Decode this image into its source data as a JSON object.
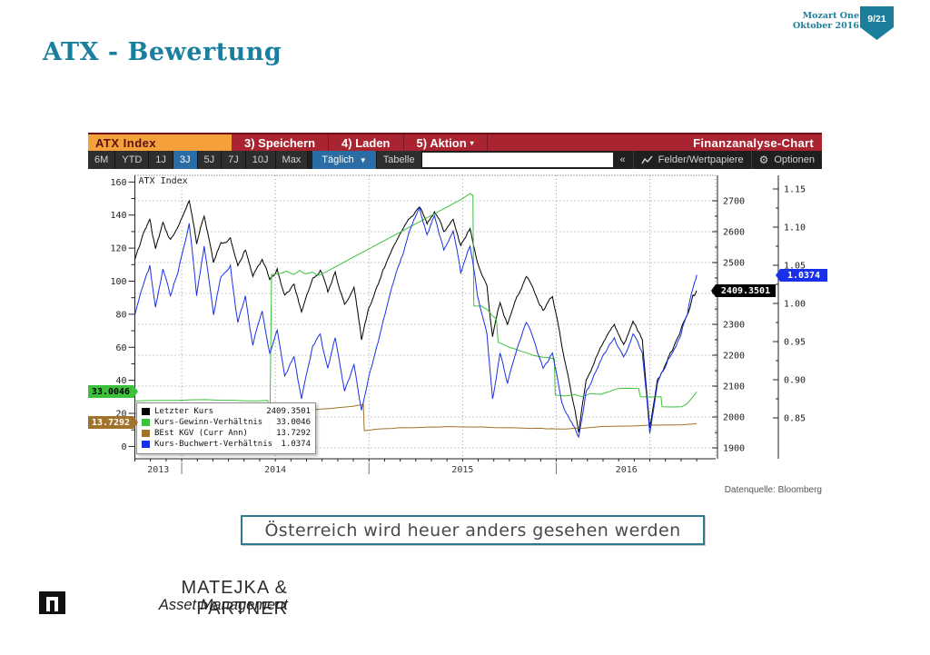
{
  "meta": {
    "project": "Mozart One",
    "date": "Oktober 2016",
    "page": "9/21"
  },
  "title": "ATX - Bewertung",
  "terminal": {
    "tab": "ATX Index",
    "menu": [
      "3) Speichern",
      "4) Laden",
      "5) Aktion"
    ],
    "window_title": "Finanzanalyse-Chart",
    "ranges": [
      "6M",
      "YTD",
      "1J",
      "3J",
      "5J",
      "7J",
      "10J",
      "Max"
    ],
    "selected_range": "3J",
    "period": "Täglich",
    "table_label": "Tabelle",
    "search_value": "",
    "icons": {
      "caret_down": "▼",
      "collapse": "«",
      "gear": "⚙",
      "chart_icon": "line-chart-icon"
    },
    "fields_label": "Felder/Wertpapiere",
    "options_label": "Optionen"
  },
  "chart_data": {
    "type": "line",
    "title": "ATX Index",
    "x_axis": {
      "start": 2013.75,
      "end": 2016.75,
      "year_labels": [
        "2013",
        "2014",
        "2015",
        "2016"
      ],
      "boundaries": [
        2014,
        2015,
        2016
      ],
      "gridlines": [
        2014,
        2014.5,
        2015,
        2015.5,
        2016,
        2016.5
      ]
    },
    "left_axis": {
      "ticks": [
        0,
        20,
        40,
        60,
        80,
        100,
        120,
        140,
        160
      ],
      "minor_step": 10
    },
    "price_axis": {
      "ticks": [
        1900,
        2000,
        2100,
        2200,
        2300,
        2400,
        2500,
        2600,
        2700
      ],
      "minor_step": 50
    },
    "ratio_axis": {
      "ticks": [
        "0.85",
        "0.90",
        "0.95",
        "1.00",
        "1.05",
        "1.10",
        "1.15"
      ],
      "minor_step": 0.025
    },
    "series": [
      {
        "name": "Letzter Kurs",
        "color": "#000000",
        "axis": "price",
        "last": "2409.3501",
        "jitter": 5.5,
        "levels": 3,
        "points": [
          [
            2013.75,
            2510
          ],
          [
            2013.79,
            2585
          ],
          [
            2013.83,
            2640
          ],
          [
            2013.86,
            2545
          ],
          [
            2013.9,
            2630
          ],
          [
            2013.94,
            2575
          ],
          [
            2013.98,
            2615
          ],
          [
            2014.04,
            2700
          ],
          [
            2014.08,
            2560
          ],
          [
            2014.12,
            2650
          ],
          [
            2014.17,
            2500
          ],
          [
            2014.21,
            2565
          ],
          [
            2014.26,
            2580
          ],
          [
            2014.3,
            2490
          ],
          [
            2014.34,
            2540
          ],
          [
            2014.38,
            2455
          ],
          [
            2014.43,
            2510
          ],
          [
            2014.47,
            2445
          ],
          [
            2014.51,
            2480
          ],
          [
            2014.55,
            2395
          ],
          [
            2014.6,
            2430
          ],
          [
            2014.64,
            2340
          ],
          [
            2014.7,
            2450
          ],
          [
            2014.74,
            2475
          ],
          [
            2014.78,
            2405
          ],
          [
            2014.82,
            2470
          ],
          [
            2014.87,
            2365
          ],
          [
            2014.92,
            2420
          ],
          [
            2014.96,
            2250
          ],
          [
            2015.0,
            2355
          ],
          [
            2015.05,
            2430
          ],
          [
            2015.1,
            2510
          ],
          [
            2015.16,
            2585
          ],
          [
            2015.21,
            2640
          ],
          [
            2015.27,
            2680
          ],
          [
            2015.31,
            2625
          ],
          [
            2015.35,
            2665
          ],
          [
            2015.4,
            2600
          ],
          [
            2015.45,
            2640
          ],
          [
            2015.49,
            2555
          ],
          [
            2015.54,
            2610
          ],
          [
            2015.58,
            2500
          ],
          [
            2015.63,
            2425
          ],
          [
            2015.66,
            2260
          ],
          [
            2015.7,
            2370
          ],
          [
            2015.74,
            2300
          ],
          [
            2015.79,
            2390
          ],
          [
            2015.84,
            2455
          ],
          [
            2015.89,
            2395
          ],
          [
            2015.93,
            2345
          ],
          [
            2015.98,
            2390
          ],
          [
            2016.03,
            2230
          ],
          [
            2016.08,
            2080
          ],
          [
            2016.12,
            1950
          ],
          [
            2016.16,
            2120
          ],
          [
            2016.21,
            2190
          ],
          [
            2016.26,
            2250
          ],
          [
            2016.31,
            2300
          ],
          [
            2016.36,
            2235
          ],
          [
            2016.41,
            2310
          ],
          [
            2016.46,
            2250
          ],
          [
            2016.5,
            1965
          ],
          [
            2016.54,
            2120
          ],
          [
            2016.58,
            2165
          ],
          [
            2016.62,
            2215
          ],
          [
            2016.66,
            2270
          ],
          [
            2016.7,
            2330
          ],
          [
            2016.73,
            2395
          ],
          [
            2016.75,
            2409.35
          ]
        ]
      },
      {
        "name": "Kurs-Gewinn-Verhältnis",
        "color": "#3cc13c",
        "axis": "left",
        "last": "33.0046",
        "jitter": 0.7,
        "levels": 1,
        "points": [
          [
            2013.75,
            27.5
          ],
          [
            2013.9,
            27.8
          ],
          [
            2014.05,
            28.2
          ],
          [
            2014.2,
            28.0
          ],
          [
            2014.35,
            27.6
          ],
          [
            2014.46,
            27.8
          ],
          [
            2014.47,
            2
          ],
          [
            2014.48,
            104
          ],
          [
            2014.52,
            104.5
          ],
          [
            2014.56,
            106
          ],
          [
            2014.6,
            104
          ],
          [
            2014.63,
            106.5
          ],
          [
            2014.66,
            104.5
          ],
          [
            2014.7,
            105.5
          ],
          [
            2014.73,
            103.5
          ],
          [
            2014.76,
            105
          ],
          [
            2015.5,
            150
          ],
          [
            2015.54,
            153
          ],
          [
            2015.555,
            152
          ],
          [
            2015.56,
            85
          ],
          [
            2015.6,
            85
          ],
          [
            2015.63,
            83
          ],
          [
            2015.66,
            79
          ],
          [
            2015.68,
            77
          ],
          [
            2015.69,
            63
          ],
          [
            2015.73,
            61
          ],
          [
            2015.78,
            59
          ],
          [
            2015.83,
            57
          ],
          [
            2015.88,
            55
          ],
          [
            2015.93,
            54
          ],
          [
            2015.99,
            53
          ],
          [
            2015.995,
            31
          ],
          [
            2016.05,
            30.5
          ],
          [
            2016.1,
            31.5
          ],
          [
            2016.14,
            30
          ],
          [
            2016.18,
            32
          ],
          [
            2016.24,
            31.5
          ],
          [
            2016.28,
            33
          ],
          [
            2016.33,
            35
          ],
          [
            2016.44,
            35
          ],
          [
            2016.45,
            30
          ],
          [
            2016.56,
            30
          ],
          [
            2016.565,
            24
          ],
          [
            2016.67,
            24
          ],
          [
            2016.7,
            26
          ],
          [
            2016.73,
            30
          ],
          [
            2016.75,
            33.0
          ]
        ]
      },
      {
        "name": "BEst KGV (Curr Ann)",
        "color": "#a0722a",
        "axis": "left",
        "last": "13.7292",
        "jitter": 1.1,
        "levels": 2,
        "points": [
          [
            2013.75,
            20.0
          ],
          [
            2014.0,
            20.5
          ],
          [
            2014.3,
            21.0
          ],
          [
            2014.6,
            21.5
          ],
          [
            2014.8,
            23
          ],
          [
            2014.95,
            25
          ],
          [
            2014.97,
            25.5
          ],
          [
            2014.975,
            9.5
          ],
          [
            2015.05,
            10.5
          ],
          [
            2015.15,
            11.2
          ],
          [
            2015.3,
            11.6
          ],
          [
            2015.45,
            12.0
          ],
          [
            2015.6,
            11.8
          ],
          [
            2015.75,
            11.4
          ],
          [
            2015.9,
            11.0
          ],
          [
            2016.0,
            10.6
          ],
          [
            2016.1,
            11.0
          ],
          [
            2016.2,
            11.6
          ],
          [
            2016.3,
            12.2
          ],
          [
            2016.45,
            12.6
          ],
          [
            2016.6,
            13.0
          ],
          [
            2016.75,
            13.73
          ]
        ]
      },
      {
        "name": "Kurs-Buchwert-Verhältnis",
        "color": "#1a30e8",
        "axis": "ratio",
        "last": "1.0374",
        "jitter": 5.5,
        "levels": 3,
        "points": [
          [
            2013.75,
            0.985
          ],
          [
            2013.79,
            1.02
          ],
          [
            2013.83,
            1.05
          ],
          [
            2013.86,
            0.995
          ],
          [
            2013.9,
            1.045
          ],
          [
            2013.94,
            1.01
          ],
          [
            2013.98,
            1.04
          ],
          [
            2014.04,
            1.105
          ],
          [
            2014.08,
            1.01
          ],
          [
            2014.12,
            1.075
          ],
          [
            2014.17,
            0.985
          ],
          [
            2014.21,
            1.035
          ],
          [
            2014.26,
            1.05
          ],
          [
            2014.3,
            0.975
          ],
          [
            2014.34,
            1.01
          ],
          [
            2014.38,
            0.945
          ],
          [
            2014.43,
            0.99
          ],
          [
            2014.47,
            0.935
          ],
          [
            2014.51,
            0.965
          ],
          [
            2014.55,
            0.905
          ],
          [
            2014.6,
            0.93
          ],
          [
            2014.64,
            0.875
          ],
          [
            2014.7,
            0.945
          ],
          [
            2014.74,
            0.96
          ],
          [
            2014.78,
            0.915
          ],
          [
            2014.82,
            0.955
          ],
          [
            2014.87,
            0.885
          ],
          [
            2014.92,
            0.92
          ],
          [
            2014.96,
            0.86
          ],
          [
            2015.0,
            0.905
          ],
          [
            2015.05,
            0.95
          ],
          [
            2015.1,
            1.0
          ],
          [
            2015.16,
            1.05
          ],
          [
            2015.21,
            1.09
          ],
          [
            2015.27,
            1.125
          ],
          [
            2015.31,
            1.09
          ],
          [
            2015.35,
            1.115
          ],
          [
            2015.4,
            1.07
          ],
          [
            2015.45,
            1.095
          ],
          [
            2015.49,
            1.04
          ],
          [
            2015.54,
            1.075
          ],
          [
            2015.58,
            1.01
          ],
          [
            2015.63,
            0.96
          ],
          [
            2015.66,
            0.875
          ],
          [
            2015.7,
            0.935
          ],
          [
            2015.74,
            0.895
          ],
          [
            2015.79,
            0.94
          ],
          [
            2015.84,
            0.975
          ],
          [
            2015.89,
            0.945
          ],
          [
            2015.93,
            0.915
          ],
          [
            2015.98,
            0.935
          ],
          [
            2016.03,
            0.87
          ],
          [
            2016.08,
            0.845
          ],
          [
            2016.12,
            0.825
          ],
          [
            2016.16,
            0.885
          ],
          [
            2016.21,
            0.91
          ],
          [
            2016.26,
            0.935
          ],
          [
            2016.31,
            0.955
          ],
          [
            2016.36,
            0.93
          ],
          [
            2016.41,
            0.96
          ],
          [
            2016.46,
            0.935
          ],
          [
            2016.5,
            0.83
          ],
          [
            2016.54,
            0.895
          ],
          [
            2016.58,
            0.915
          ],
          [
            2016.62,
            0.935
          ],
          [
            2016.66,
            0.955
          ],
          [
            2016.7,
            0.985
          ],
          [
            2016.73,
            1.02
          ],
          [
            2016.75,
            1.0374
          ]
        ]
      }
    ],
    "grid": true,
    "legend_position": "bottom-left"
  },
  "source": "Datenquelle: Bloomberg",
  "quote": "Österreich wird heuer anders gesehen werden",
  "footer": {
    "company": "MATEJKA & PARTNER",
    "division": "Asset Management"
  }
}
